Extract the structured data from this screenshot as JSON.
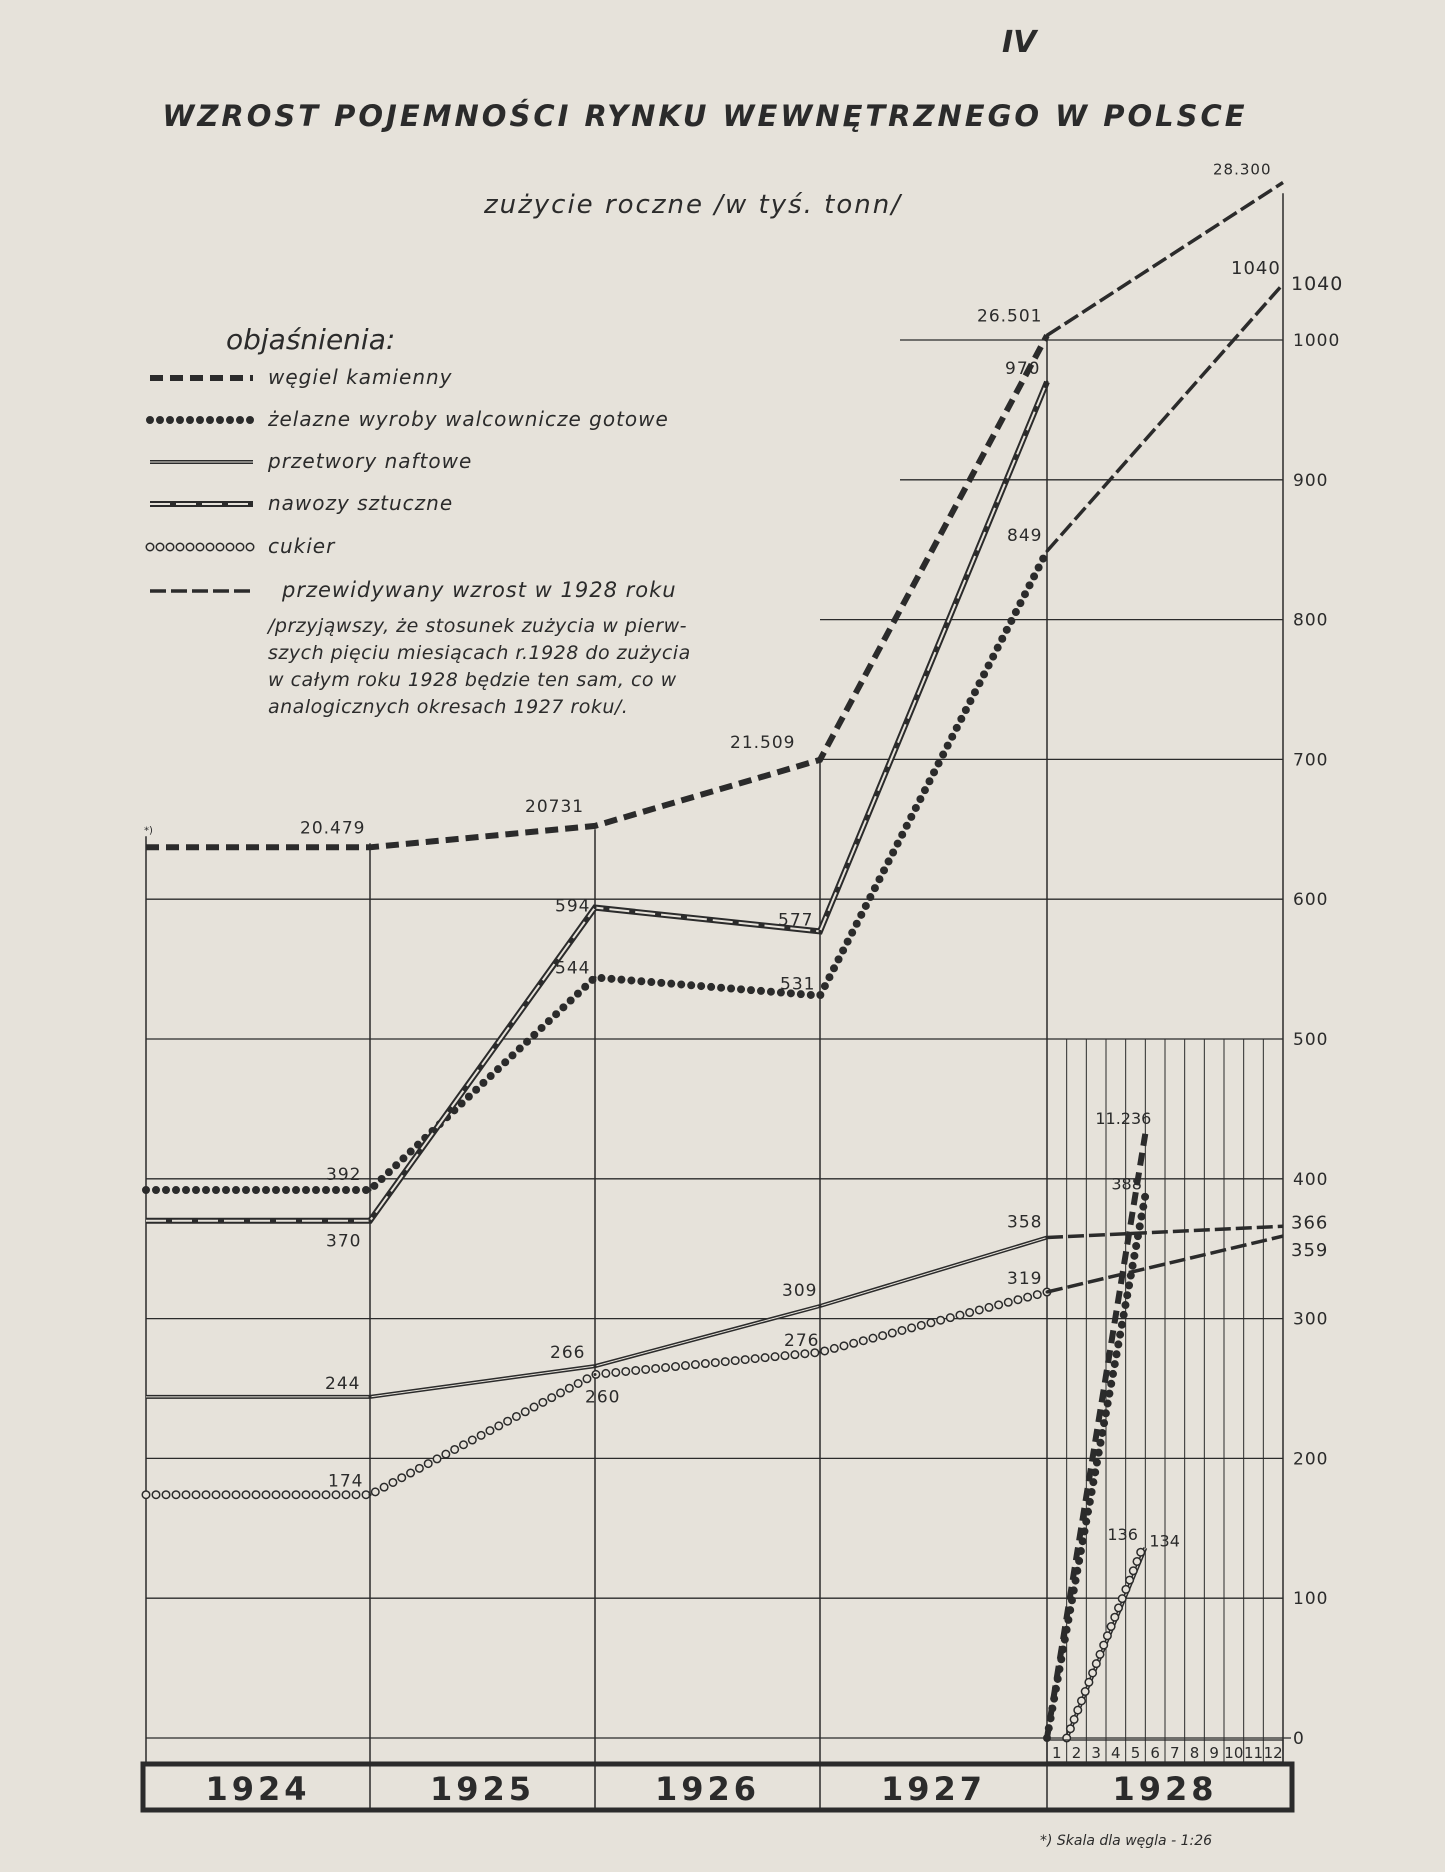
{
  "chart_data": {
    "type": "line",
    "page_number": "IV",
    "title": "WZROST POJEMNOŚCI RYNKU WEWNĘTRZNEGO W POLSCE",
    "subtitle": "zużycie roczne /w tyś. tonn/",
    "x_categories": [
      "1924",
      "1925",
      "1926",
      "1927",
      "1928"
    ],
    "months_1928": [
      "1",
      "2",
      "3",
      "4",
      "5",
      "6",
      "7",
      "8",
      "9",
      "10",
      "11",
      "12"
    ],
    "y_ticks": [
      "0",
      "100",
      "200",
      "300",
      "400",
      "500",
      "600",
      "700",
      "800",
      "900",
      "1000"
    ],
    "y_extra_tick": "1040",
    "ylim": [
      0,
      1040
    ],
    "grid": true,
    "legend_position": "top-left",
    "legend": {
      "heading": "objaśnienia:",
      "items": [
        {
          "key": "coal",
          "label": "węgiel kamienny"
        },
        {
          "key": "iron",
          "label": "żelazne wyroby walcownicze gotowe"
        },
        {
          "key": "oil",
          "label": "przetwory naftowe"
        },
        {
          "key": "fert",
          "label": "nawozy sztuczne"
        },
        {
          "key": "sugar",
          "label": "cukier"
        },
        {
          "key": "proj",
          "label": "przewidywany wzrost w 1928 roku"
        }
      ],
      "note": [
        "/przyjąwszy, że stosunek zużycia w pierw-",
        "szych pięciu miesiącach r.1928 do zużycia",
        "w całym roku 1928 będzie ten sam, co w",
        "analogicznych okresach 1927 roku/."
      ]
    },
    "series": [
      {
        "key": "coal",
        "name": "węgiel kamienny",
        "values": [
          20479,
          20731,
          21509,
          26501
        ],
        "labels": [
          "20.479",
          "20731",
          "21.509",
          "26.501"
        ],
        "projection_1928": 28300,
        "projection_label": "28.300",
        "jan_may_1928": 11236,
        "jan_may_label": "11.236"
      },
      {
        "key": "iron",
        "name": "żelazne wyroby walcownicze gotowe",
        "values": [
          392,
          544,
          531,
          849
        ],
        "labels": [
          "392",
          "544",
          "531",
          "849"
        ],
        "projection_1928": 1040,
        "projection_label": "1040",
        "jan_may_1928": 388,
        "jan_may_label": "388"
      },
      {
        "key": "oil",
        "name": "przetwory naftowe",
        "values": [
          244,
          266,
          309,
          358
        ],
        "labels": [
          "244",
          "266",
          "309",
          "358"
        ],
        "projection_1928": 366,
        "projection_label": "366",
        "jan_may_1928": 136,
        "jan_may_label": "136"
      },
      {
        "key": "fert",
        "name": "nawozy sztuczne",
        "values": [
          370,
          594,
          577,
          970
        ],
        "labels": [
          "370",
          "594",
          "577",
          "970"
        ]
      },
      {
        "key": "sugar",
        "name": "cukier",
        "values": [
          174,
          260,
          276,
          319
        ],
        "labels": [
          "174",
          "260",
          "276",
          "319"
        ],
        "projection_1928": 359,
        "projection_label": "359",
        "jan_may_1928": 134,
        "jan_may_label": "134"
      }
    ],
    "coal_marker": "*)",
    "footnote": "*) Skala dla węgla - 1:26",
    "colors": {
      "paper": "#e6e2da",
      "ink": "#2b2b2b"
    }
  }
}
